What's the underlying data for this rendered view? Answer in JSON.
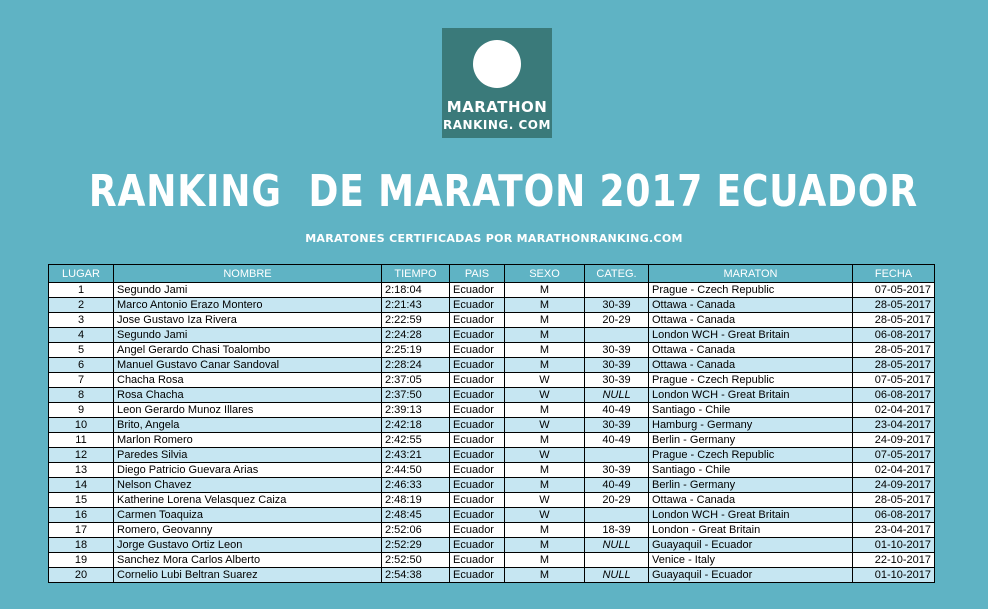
{
  "logo": {
    "line1": "MARATHON",
    "line2": "RANKING. COM"
  },
  "title": "RANKING  DE MARATON 2017 ECUADOR",
  "subtitle": "MARATONES CERTIFICADAS POR MARATHONRANKING.COM",
  "columns": [
    "LUGAR",
    "NOMBRE",
    "TIEMPO",
    "PAIS",
    "SEXO",
    "CATEG.",
    "MARATON",
    "FECHA"
  ],
  "rows": [
    {
      "lugar": "1",
      "nombre": "Segundo Jami",
      "tiempo": "2:18:04",
      "pais": "Ecuador",
      "sexo": "M",
      "categ": "",
      "maraton": "Prague - Czech Republic",
      "fecha": "07-05-2017"
    },
    {
      "lugar": "2",
      "nombre": "Marco Antonio Erazo Montero",
      "tiempo": "2:21:43",
      "pais": "Ecuador",
      "sexo": "M",
      "categ": "30-39",
      "maraton": "Ottawa - Canada",
      "fecha": "28-05-2017"
    },
    {
      "lugar": "3",
      "nombre": "Jose Gustavo Iza Rivera",
      "tiempo": "2:22:59",
      "pais": "Ecuador",
      "sexo": "M",
      "categ": "20-29",
      "maraton": "Ottawa - Canada",
      "fecha": "28-05-2017"
    },
    {
      "lugar": "4",
      "nombre": "Segundo Jami",
      "tiempo": "2:24:28",
      "pais": "Ecuador",
      "sexo": "M",
      "categ": "",
      "maraton": "London WCH - Great Britain",
      "fecha": "06-08-2017"
    },
    {
      "lugar": "5",
      "nombre": "Angel Gerardo Chasi Toalombo",
      "tiempo": "2:25:19",
      "pais": "Ecuador",
      "sexo": "M",
      "categ": "30-39",
      "maraton": "Ottawa - Canada",
      "fecha": "28-05-2017"
    },
    {
      "lugar": "6",
      "nombre": "Manuel Gustavo Canar Sandoval",
      "tiempo": "2:28:24",
      "pais": "Ecuador",
      "sexo": "M",
      "categ": "30-39",
      "maraton": "Ottawa - Canada",
      "fecha": "28-05-2017"
    },
    {
      "lugar": "7",
      "nombre": "Chacha Rosa",
      "tiempo": "2:37:05",
      "pais": "Ecuador",
      "sexo": "W",
      "categ": "30-39",
      "maraton": "Prague - Czech Republic",
      "fecha": "07-05-2017"
    },
    {
      "lugar": "8",
      "nombre": "Rosa Chacha",
      "tiempo": "2:37:50",
      "pais": "Ecuador",
      "sexo": "W",
      "categ": "NULL",
      "maraton": "London WCH - Great Britain",
      "fecha": "06-08-2017"
    },
    {
      "lugar": "9",
      "nombre": "Leon Gerardo Munoz Illares",
      "tiempo": "2:39:13",
      "pais": "Ecuador",
      "sexo": "M",
      "categ": "40-49",
      "maraton": "Santiago - Chile",
      "fecha": "02-04-2017"
    },
    {
      "lugar": "10",
      "nombre": "Brito, Angela",
      "tiempo": "2:42:18",
      "pais": "Ecuador",
      "sexo": "W",
      "categ": "30-39",
      "maraton": "Hamburg - Germany",
      "fecha": "23-04-2017"
    },
    {
      "lugar": "11",
      "nombre": "Marlon Romero",
      "tiempo": "2:42:55",
      "pais": "Ecuador",
      "sexo": "M",
      "categ": "40-49",
      "maraton": "Berlin - Germany",
      "fecha": "24-09-2017"
    },
    {
      "lugar": "12",
      "nombre": "Paredes Silvia",
      "tiempo": "2:43:21",
      "pais": "Ecuador",
      "sexo": "W",
      "categ": "",
      "maraton": "Prague - Czech Republic",
      "fecha": "07-05-2017"
    },
    {
      "lugar": "13",
      "nombre": "Diego Patricio Guevara Arias",
      "tiempo": "2:44:50",
      "pais": "Ecuador",
      "sexo": "M",
      "categ": "30-39",
      "maraton": "Santiago - Chile",
      "fecha": "02-04-2017"
    },
    {
      "lugar": "14",
      "nombre": "Nelson Chavez",
      "tiempo": "2:46:33",
      "pais": "Ecuador",
      "sexo": "M",
      "categ": "40-49",
      "maraton": "Berlin - Germany",
      "fecha": "24-09-2017"
    },
    {
      "lugar": "15",
      "nombre": "Katherine Lorena Velasquez Caiza",
      "tiempo": "2:48:19",
      "pais": "Ecuador",
      "sexo": "W",
      "categ": "20-29",
      "maraton": "Ottawa - Canada",
      "fecha": "28-05-2017"
    },
    {
      "lugar": "16",
      "nombre": "Carmen Toaquiza",
      "tiempo": "2:48:45",
      "pais": "Ecuador",
      "sexo": "W",
      "categ": "",
      "maraton": "London WCH - Great Britain",
      "fecha": "06-08-2017"
    },
    {
      "lugar": "17",
      "nombre": "Romero, Geovanny",
      "tiempo": "2:52:06",
      "pais": "Ecuador",
      "sexo": "M",
      "categ": "18-39",
      "maraton": "London - Great Britain",
      "fecha": "23-04-2017"
    },
    {
      "lugar": "18",
      "nombre": "Jorge Gustavo Ortiz Leon",
      "tiempo": "2:52:29",
      "pais": "Ecuador",
      "sexo": "M",
      "categ": "NULL",
      "maraton": "Guayaquil - Ecuador",
      "fecha": "01-10-2017"
    },
    {
      "lugar": "19",
      "nombre": "Sanchez Mora Carlos Alberto",
      "tiempo": "2:52:50",
      "pais": "Ecuador",
      "sexo": "M",
      "categ": "",
      "maraton": "Venice - Italy",
      "fecha": "22-10-2017"
    },
    {
      "lugar": "20",
      "nombre": "Cornelio Lubi Beltran Suarez",
      "tiempo": "2:54:38",
      "pais": "Ecuador",
      "sexo": "M",
      "categ": "NULL",
      "maraton": "Guayaquil - Ecuador",
      "fecha": "01-10-2017"
    }
  ],
  "colors": {
    "background": "#5fb3c4",
    "logo_bg": "#3a7a7a",
    "row_alt": "#c6e6f2"
  }
}
